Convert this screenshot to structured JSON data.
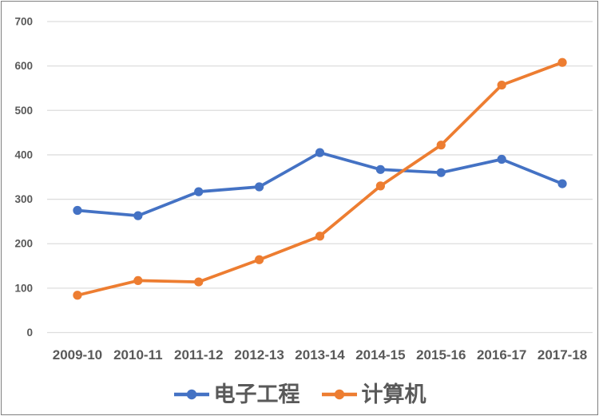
{
  "chart_data": {
    "type": "line",
    "title": "",
    "xlabel": "",
    "ylabel": "",
    "categories": [
      "2009-10",
      "2010-11",
      "2011-12",
      "2012-13",
      "2013-14",
      "2014-15",
      "2015-16",
      "2016-17",
      "2017-18"
    ],
    "series": [
      {
        "name": "电子工程",
        "color": "#4472C4",
        "values": [
          275,
          263,
          317,
          328,
          405,
          367,
          360,
          390,
          335
        ]
      },
      {
        "name": "计算机",
        "color": "#ED7D31",
        "values": [
          84,
          117,
          114,
          164,
          217,
          330,
          422,
          557,
          608
        ]
      }
    ],
    "ylim": [
      0,
      700
    ],
    "ytick_step": 100,
    "ytick_labels": [
      "0",
      "100",
      "200",
      "300",
      "400",
      "500",
      "600",
      "700"
    ],
    "grid": true,
    "legend_position": "bottom-center"
  },
  "style_colors": {
    "grid_line": "#DDDDDD",
    "axis_text": "#595959",
    "legend_text": "#595959",
    "frame_border": "#7F7F7F",
    "background": "#FFFFFF"
  }
}
